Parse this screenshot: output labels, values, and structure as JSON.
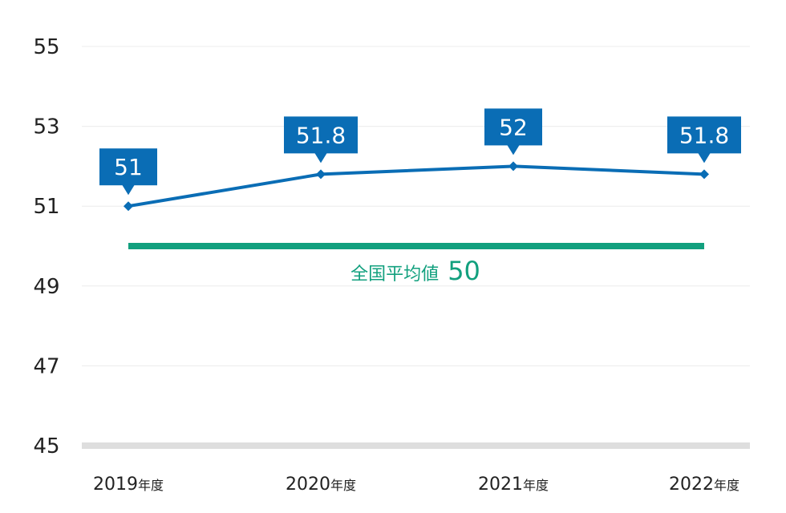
{
  "chart_data": {
    "type": "line",
    "categories": [
      "2019",
      "2020",
      "2021",
      "2022"
    ],
    "category_suffix": "年度",
    "series": [
      {
        "values": [
          51,
          51.8,
          52,
          51.8
        ],
        "color": "#0a6db5"
      }
    ],
    "data_labels": [
      "51",
      "51.8",
      "52",
      "51.8"
    ],
    "ylim": [
      45,
      55
    ],
    "yticks": [
      55,
      53,
      51,
      49,
      47,
      45
    ],
    "ytick_labels": [
      "55",
      "53",
      "51",
      "49",
      "47",
      "45"
    ],
    "grid": true,
    "reference_line": {
      "value": 50,
      "label": "全国平均値",
      "value_label": "50",
      "color": "#12a07e"
    },
    "title": "",
    "xlabel": "",
    "ylabel": ""
  }
}
